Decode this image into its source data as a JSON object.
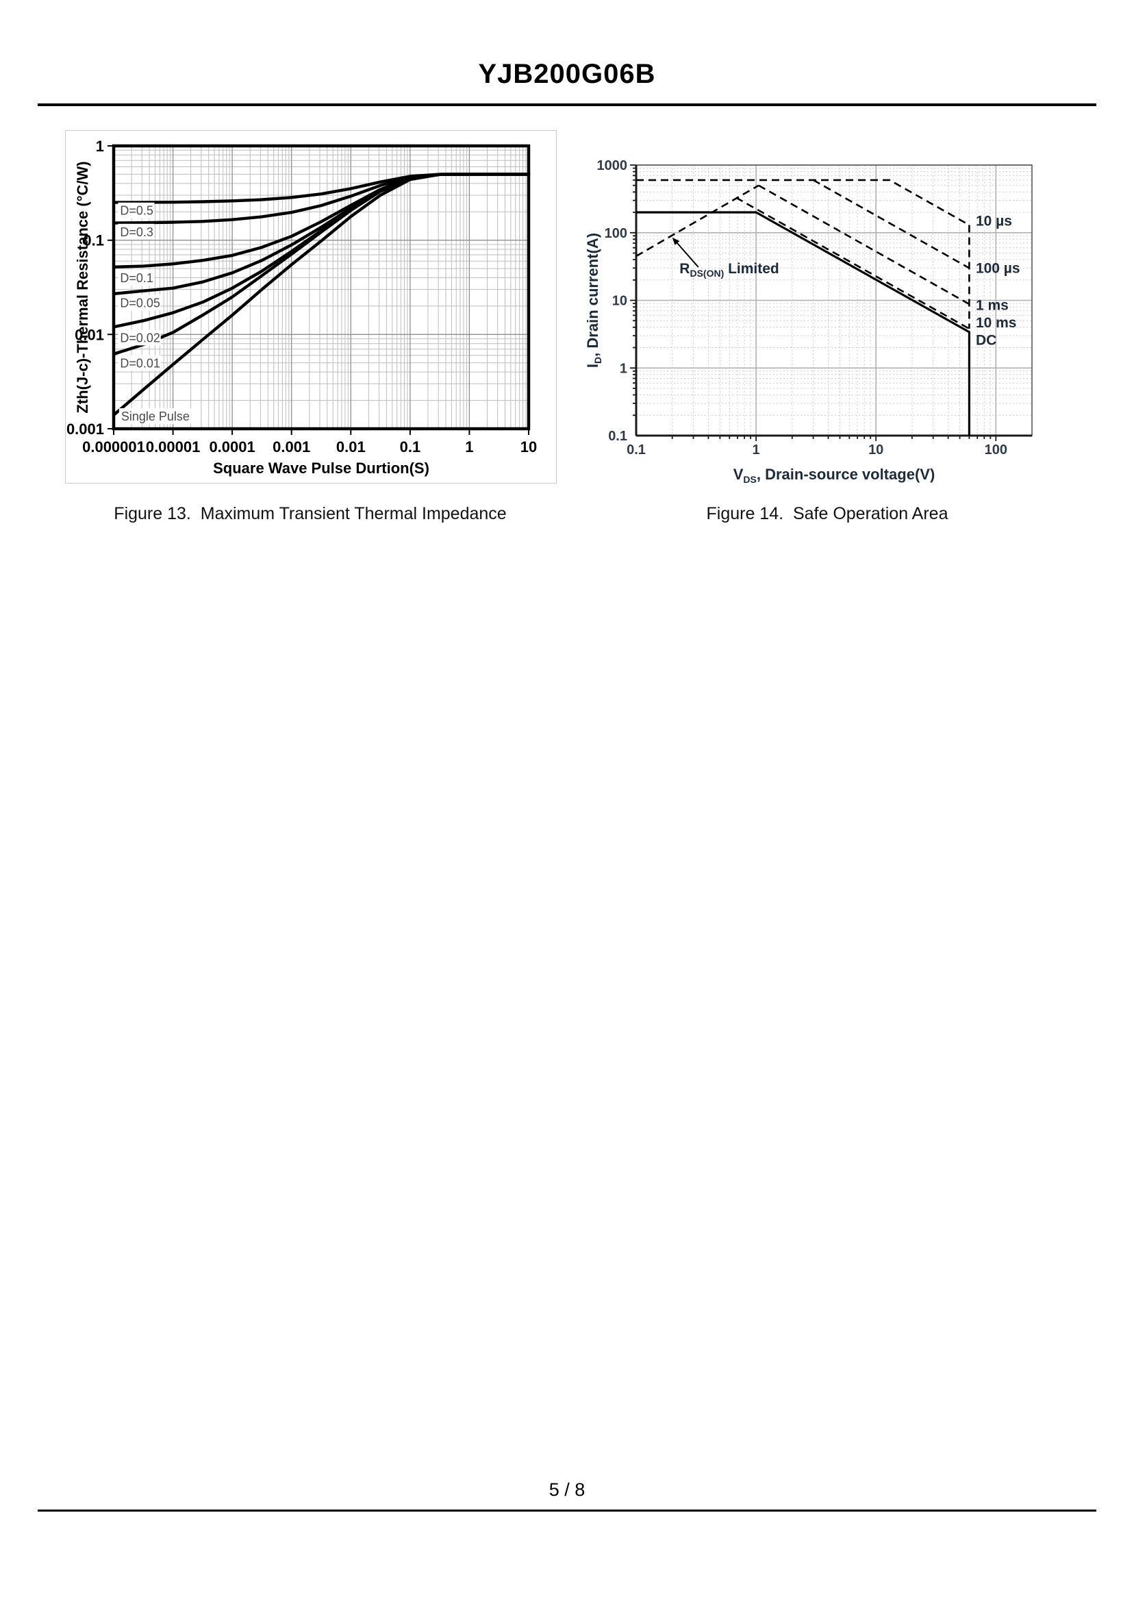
{
  "page": {
    "title": "YJB200G06B",
    "page_number": "5 / 8",
    "captions": {
      "fig13": "Figure 13.  Maximum Transient Thermal Impedance",
      "fig14": "Figure 14.  Safe Operation Area"
    }
  },
  "chart_data": [
    {
      "id": "fig13",
      "type": "line",
      "title": "Maximum Transient Thermal Impedance",
      "xlabel": "Square Wave Pulse  Durtion(S)",
      "ylabel": "Zth(J-c)-Thermal  Resistance (°C/W)",
      "xscale": "log",
      "yscale": "log",
      "xlim": [
        1e-06,
        10
      ],
      "ylim": [
        0.001,
        1
      ],
      "x_tick_labels": [
        "0.000001",
        "0.00001",
        "0.0001",
        "0.001",
        "0.01",
        "0.1",
        "1",
        "10"
      ],
      "y_tick_labels": [
        "1",
        "0.1",
        "0.01",
        "0.001"
      ],
      "grid": "dense-log",
      "x_common": [
        1e-06,
        3.16e-06,
        1e-05,
        3.16e-05,
        0.0001,
        0.000316,
        0.001,
        0.00316,
        0.01,
        0.0316,
        0.1,
        0.316,
        1,
        10
      ],
      "series": [
        {
          "name": "D=0.5",
          "y": [
            0.251,
            0.252,
            0.253,
            0.256,
            0.261,
            0.269,
            0.284,
            0.309,
            0.352,
            0.414,
            0.476,
            0.499,
            0.5,
            0.5
          ]
        },
        {
          "name": "D=0.3",
          "y": [
            0.152,
            0.153,
            0.155,
            0.158,
            0.165,
            0.177,
            0.197,
            0.233,
            0.293,
            0.38,
            0.467,
            0.499,
            0.5,
            0.5
          ]
        },
        {
          "name": "D=0.1",
          "y": [
            0.052,
            0.053,
            0.056,
            0.061,
            0.069,
            0.084,
            0.11,
            0.157,
            0.234,
            0.346,
            0.458,
            0.499,
            0.5,
            0.5
          ]
        },
        {
          "name": "D=0.05",
          "y": [
            0.027,
            0.029,
            0.031,
            0.036,
            0.045,
            0.061,
            0.089,
            0.137,
            0.219,
            0.337,
            0.455,
            0.498,
            0.5,
            0.5
          ]
        },
        {
          "name": "D=0.02",
          "y": [
            0.012,
            0.014,
            0.017,
            0.022,
            0.031,
            0.047,
            0.076,
            0.126,
            0.21,
            0.332,
            0.454,
            0.498,
            0.5,
            0.5
          ]
        },
        {
          "name": "D=0.01",
          "y": [
            0.0062,
            0.0078,
            0.0105,
            0.016,
            0.025,
            0.042,
            0.071,
            0.122,
            0.207,
            0.33,
            0.453,
            0.498,
            0.5,
            0.5
          ]
        },
        {
          "name": "Single Pulse",
          "y": [
            0.0014,
            0.0026,
            0.0048,
            0.0088,
            0.016,
            0.03,
            0.055,
            0.098,
            0.178,
            0.3,
            0.44,
            0.497,
            0.5,
            0.5
          ]
        }
      ],
      "curve_labels": [
        {
          "text": "D=0.5",
          "x": 1.25e-06,
          "y": 0.205
        },
        {
          "text": "D=0.3",
          "x": 1.25e-06,
          "y": 0.122
        },
        {
          "text": "D=0.1",
          "x": 1.25e-06,
          "y": 0.0395
        },
        {
          "text": "D=0.05",
          "x": 1.25e-06,
          "y": 0.0215
        },
        {
          "text": "D=0.02",
          "x": 1.25e-06,
          "y": 0.0092
        },
        {
          "text": "D=0.01",
          "x": 1.25e-06,
          "y": 0.00495
        },
        {
          "text": "Single Pulse",
          "x": 1.3e-06,
          "y": 0.00135
        }
      ]
    },
    {
      "id": "fig14",
      "type": "line",
      "title": "Safe Operation Area",
      "xlabel_parts": {
        "main": "V",
        "sub": "DS",
        "rest": ", Drain-source voltage(V)"
      },
      "ylabel_parts": {
        "main": "I",
        "sub": "D",
        "rest": ", Drain current(A)"
      },
      "xscale": "log",
      "yscale": "log",
      "xlim": [
        0.1,
        200
      ],
      "ylim": [
        0.1,
        1000
      ],
      "x_tick_labels": [
        "0.1",
        "1",
        "10",
        "100"
      ],
      "y_tick_labels": [
        "1000",
        "100",
        "10",
        "1",
        "0.1"
      ],
      "grid": "dashed-minor",
      "series": [
        {
          "name": "10 µs",
          "dash": true,
          "x": [
            0.1,
            13,
            60
          ],
          "y": [
            600,
            600,
            130
          ]
        },
        {
          "name": "100 µs",
          "dash": true,
          "x": [
            3,
            60
          ],
          "y": [
            600,
            30
          ]
        },
        {
          "name": "1 ms",
          "dash": true,
          "x": [
            1.05,
            60
          ],
          "y": [
            500,
            8.8
          ]
        },
        {
          "name": "10 ms",
          "dash": true,
          "x": [
            0.68,
            60
          ],
          "y": [
            330,
            3.8
          ]
        },
        {
          "name": "RDS(ON) limit",
          "dash": true,
          "x": [
            0.1,
            1.05
          ],
          "y": [
            45,
            500
          ]
        },
        {
          "name": "voltage limit",
          "dash": true,
          "x": [
            60,
            60
          ],
          "y": [
            130,
            3.8
          ]
        },
        {
          "name": "DC",
          "dash": false,
          "x": [
            0.1,
            1,
            60,
            60
          ],
          "y": [
            200,
            200,
            3.4,
            0.1
          ]
        }
      ],
      "right_labels": [
        {
          "text": "10 µs",
          "y": 150
        },
        {
          "text": "100 µs",
          "y": 30
        },
        {
          "text": "1 ms",
          "y": 8.5
        },
        {
          "text": "10 ms",
          "y": 4.7
        },
        {
          "text": "DC",
          "y": 2.6
        }
      ],
      "annotation": {
        "main": "R",
        "sub": "DS(ON)",
        "rest": " Limited",
        "x": 0.23,
        "y": 25,
        "arrow_from_x": 0.33,
        "arrow_from_y": 31,
        "arrow_to_x": 0.2,
        "arrow_to_y": 85
      },
      "colors": {
        "curve": "#000000",
        "major_grid": "#b0b0b0",
        "minor_grid": "#cccccc",
        "tick_text": "#2f3b4c",
        "label_text": "#1c2a3a"
      }
    }
  ]
}
